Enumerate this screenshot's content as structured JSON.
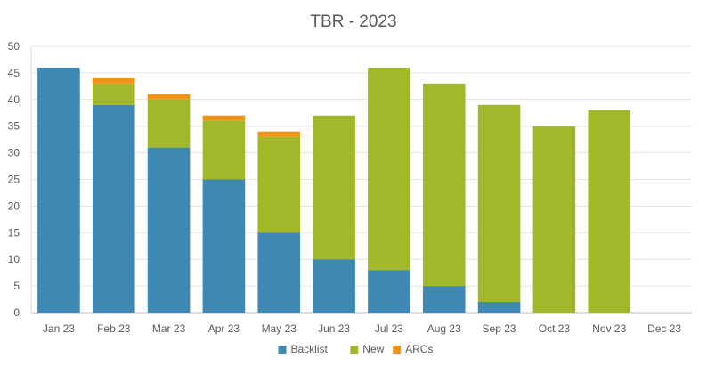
{
  "chart_data": {
    "type": "bar",
    "stacked": true,
    "title": "TBR - 2023",
    "xlabel": "",
    "ylabel": "",
    "ylim": [
      0,
      50
    ],
    "yticks": [
      0,
      5,
      10,
      15,
      20,
      25,
      30,
      35,
      40,
      45,
      50
    ],
    "grid": true,
    "legend_position": "bottom",
    "categories": [
      "Jan 23",
      "Feb 23",
      "Mar 23",
      "Apr 23",
      "May 23",
      "Jun 23",
      "Jul 23",
      "Aug 23",
      "Sep 23",
      "Oct 23",
      "Nov 23",
      "Dec 23"
    ],
    "series": [
      {
        "name": "Backlist",
        "color": "#3f88b4",
        "values": [
          46,
          39,
          31,
          25,
          15,
          10,
          8,
          5,
          2,
          0,
          0,
          0
        ]
      },
      {
        "name": "New",
        "color": "#a3b72a",
        "values": [
          0,
          4,
          9,
          11,
          18,
          27,
          38,
          38,
          37,
          35,
          38,
          0
        ]
      },
      {
        "name": "ARCs",
        "color": "#ef9416",
        "values": [
          0,
          1,
          1,
          1,
          1,
          0,
          0,
          0,
          0,
          0,
          0,
          0
        ]
      }
    ]
  }
}
